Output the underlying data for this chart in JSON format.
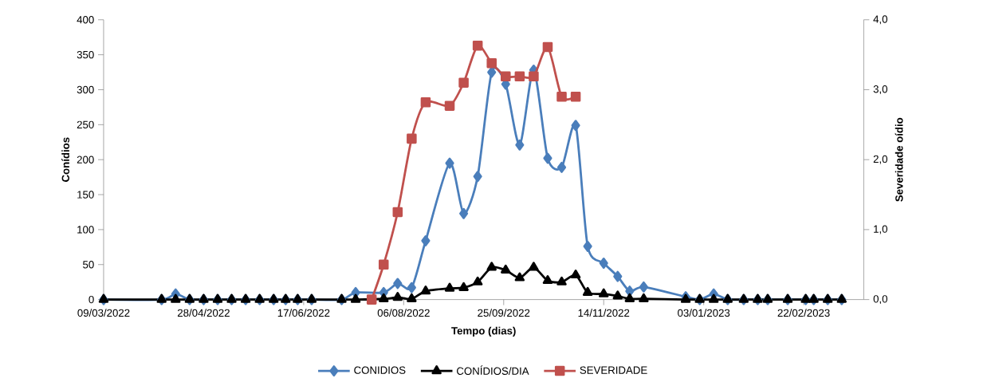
{
  "chart_data": {
    "type": "line",
    "xlabel": "Tempo (dias)",
    "ylabel": "Conídios",
    "y2label": "Severidade oídio",
    "xlim": [
      "2022-03-09",
      "2023-03-24"
    ],
    "xticks": [
      {
        "value": "2022-03-09",
        "label": "09/03/2022"
      },
      {
        "value": "2022-04-28",
        "label": "28/04/2022"
      },
      {
        "value": "2022-06-17",
        "label": "17/06/2022"
      },
      {
        "value": "2022-08-06",
        "label": "06/08/2022"
      },
      {
        "value": "2022-09-25",
        "label": "25/09/2022"
      },
      {
        "value": "2022-11-14",
        "label": "14/11/2022"
      },
      {
        "value": "2023-01-03",
        "label": "03/01/2023"
      },
      {
        "value": "2023-02-22",
        "label": "22/02/2023"
      }
    ],
    "ylim": [
      0,
      400
    ],
    "yticks": [
      0,
      50,
      100,
      150,
      200,
      250,
      300,
      350,
      400
    ],
    "y2lim": [
      0,
      4
    ],
    "y2ticks": [
      {
        "value": 0,
        "label": "0,0"
      },
      {
        "value": 1,
        "label": "1,0"
      },
      {
        "value": 2,
        "label": "2,0"
      },
      {
        "value": 3,
        "label": "3,0"
      },
      {
        "value": 4,
        "label": "4,0"
      }
    ],
    "legend": "bottom",
    "grid": false,
    "x": [
      "2022-03-09",
      "2022-04-07",
      "2022-04-14",
      "2022-04-21",
      "2022-04-28",
      "2022-05-05",
      "2022-05-12",
      "2022-05-19",
      "2022-05-26",
      "2022-06-02",
      "2022-06-08",
      "2022-06-14",
      "2022-06-21",
      "2022-07-06",
      "2022-07-13",
      "2022-07-27",
      "2022-08-03",
      "2022-08-10",
      "2022-08-17",
      "2022-08-29",
      "2022-09-05",
      "2022-09-12",
      "2022-09-19",
      "2022-09-26",
      "2022-10-03",
      "2022-10-10",
      "2022-10-17",
      "2022-10-24",
      "2022-10-31",
      "2022-11-06",
      "2022-11-14",
      "2022-11-21",
      "2022-11-27",
      "2022-12-04",
      "2022-12-25",
      "2023-01-01",
      "2023-01-08",
      "2023-01-15",
      "2023-01-23",
      "2023-01-30",
      "2023-02-04",
      "2023-02-14",
      "2023-02-23",
      "2023-02-27",
      "2023-03-06",
      "2023-03-13"
    ],
    "series": [
      {
        "name": "CONIDIOS",
        "color": "#4a7ebb",
        "marker": "diamond",
        "values": [
          0,
          0,
          8,
          0,
          0,
          0,
          0,
          0,
          0,
          0,
          0,
          0,
          0,
          0,
          10,
          10,
          23,
          17,
          84,
          195,
          123,
          176,
          325,
          308,
          221,
          328,
          202,
          189,
          249,
          76,
          52,
          33,
          12,
          18,
          4,
          0,
          8,
          0,
          0,
          0,
          0,
          0,
          0,
          0,
          0,
          0
        ]
      },
      {
        "name": "CONÍDIOS/DIA",
        "color": "#000000",
        "marker": "triangle",
        "values": [
          0,
          0,
          0,
          0,
          0,
          0,
          0,
          0,
          0,
          0,
          0,
          0,
          0,
          0,
          0,
          1,
          3,
          1,
          12,
          16,
          17,
          25,
          46,
          42,
          31,
          46,
          27,
          25,
          35,
          10,
          8,
          5,
          1,
          1,
          0,
          0,
          0,
          0,
          0,
          0,
          0,
          0,
          0,
          0,
          0,
          0
        ]
      },
      {
        "name": "SEVERIDADE",
        "color": "#c0504d",
        "marker": "square",
        "axis": "y2",
        "x": [
          "2022-07-21",
          "2022-07-27",
          "2022-08-03",
          "2022-08-10",
          "2022-08-17",
          "2022-08-29",
          "2022-09-05",
          "2022-09-12",
          "2022-09-19",
          "2022-09-26",
          "2022-10-03",
          "2022-10-10",
          "2022-10-17",
          "2022-10-24",
          "2022-10-31"
        ],
        "values": [
          0,
          0.5,
          1.25,
          2.3,
          2.82,
          2.77,
          3.1,
          3.63,
          3.38,
          3.19,
          3.19,
          3.19,
          3.61,
          2.9,
          2.9
        ]
      }
    ]
  }
}
